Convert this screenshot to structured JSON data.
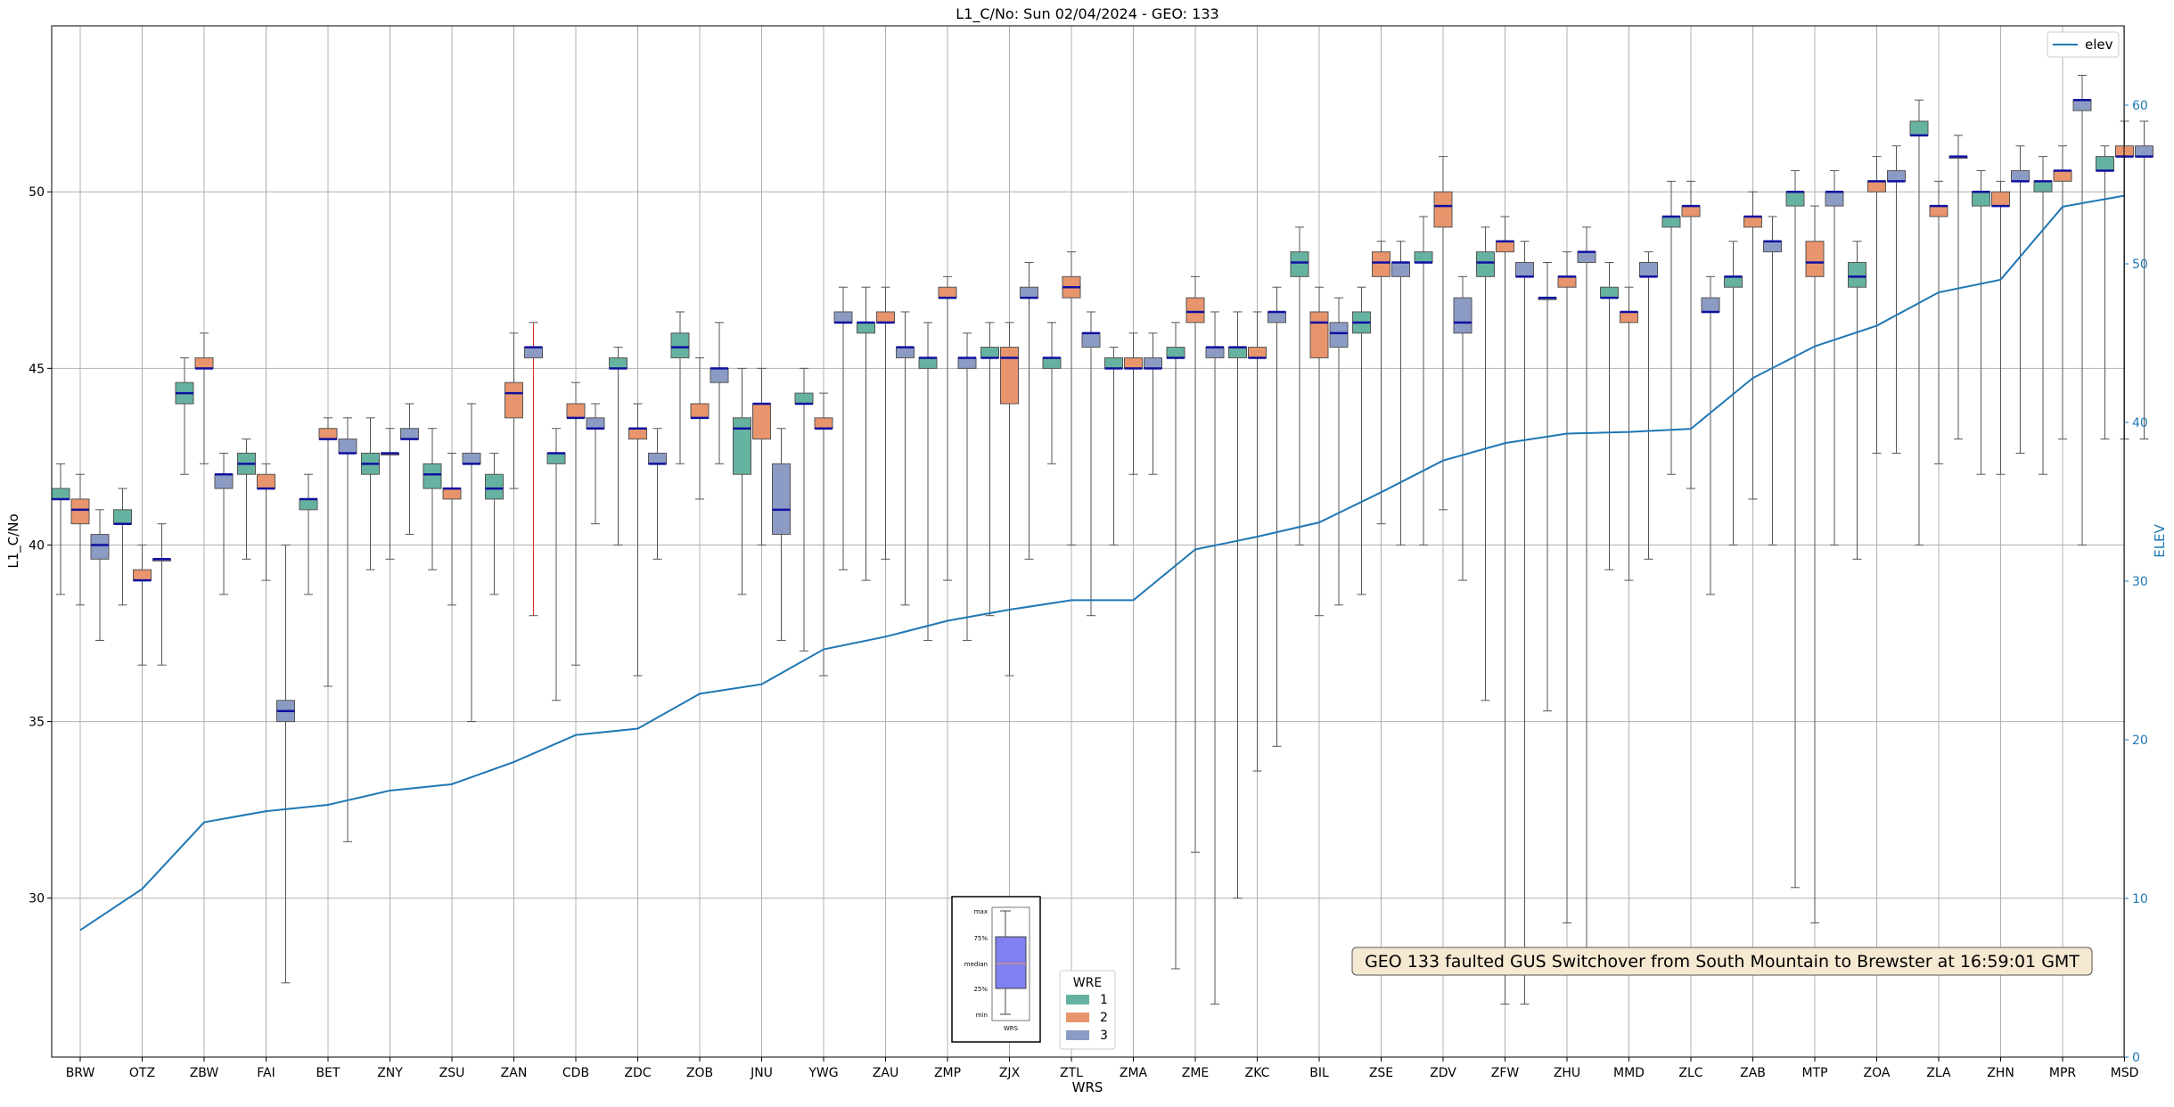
{
  "chart_data": {
    "type": "box",
    "title": "L1_C/No: Sun 02/04/2024 - GEO: 133",
    "xlabel": "WRS",
    "ylabel": "L1_C/No",
    "y2label": "ELEV",
    "ylim": [
      25.5,
      54.7
    ],
    "y2lim": [
      0,
      65
    ],
    "yticks": [
      30,
      35,
      40,
      45,
      50
    ],
    "y2ticks": [
      0,
      10,
      20,
      30,
      40,
      50,
      60
    ],
    "grid": true,
    "categories": [
      "BRW",
      "OTZ",
      "ZBW",
      "FAI",
      "BET",
      "ZNY",
      "ZSU",
      "ZAN",
      "CDB",
      "ZDC",
      "ZOB",
      "JNU",
      "YWG",
      "ZAU",
      "ZMP",
      "ZJX",
      "ZTL",
      "ZMA",
      "ZME",
      "ZKC",
      "BIL",
      "ZSE",
      "ZDV",
      "ZFW",
      "ZHU",
      "MMD",
      "ZLC",
      "ZAB",
      "MTP",
      "ZOA",
      "ZLA",
      "ZHN",
      "MPR",
      "MSD"
    ],
    "wre_colors": {
      "1": "#66b2a0",
      "2": "#e8946c",
      "3": "#8c9bc4"
    },
    "boxes": [
      {
        "wrs": "BRW",
        "wre": 1,
        "min": 38.6,
        "q1": 41.3,
        "median": 41.3,
        "q3": 41.6,
        "max": 42.3
      },
      {
        "wrs": "BRW",
        "wre": 2,
        "min": 38.3,
        "q1": 40.6,
        "median": 41.0,
        "q3": 41.3,
        "max": 42.0
      },
      {
        "wrs": "BRW",
        "wre": 3,
        "min": 37.3,
        "q1": 39.6,
        "median": 40.0,
        "q3": 40.3,
        "max": 41.0
      },
      {
        "wrs": "OTZ",
        "wre": 1,
        "min": 38.3,
        "q1": 40.6,
        "median": 40.6,
        "q3": 41.0,
        "max": 41.6
      },
      {
        "wrs": "OTZ",
        "wre": 2,
        "min": 36.6,
        "q1": 39.0,
        "median": 39.0,
        "q3": 39.3,
        "max": 40.0
      },
      {
        "wrs": "OTZ",
        "wre": 3,
        "min": 36.6,
        "q1": 39.6,
        "median": 39.6,
        "q3": 39.6,
        "max": 40.6
      },
      {
        "wrs": "ZBW",
        "wre": 1,
        "min": 42.0,
        "q1": 44.0,
        "median": 44.3,
        "q3": 44.6,
        "max": 45.3
      },
      {
        "wrs": "ZBW",
        "wre": 2,
        "min": 42.3,
        "q1": 45.0,
        "median": 45.0,
        "q3": 45.3,
        "max": 46.0
      },
      {
        "wrs": "ZBW",
        "wre": 3,
        "min": 38.6,
        "q1": 41.6,
        "median": 42.0,
        "q3": 42.0,
        "max": 42.6
      },
      {
        "wrs": "FAI",
        "wre": 1,
        "min": 39.6,
        "q1": 42.0,
        "median": 42.3,
        "q3": 42.6,
        "max": 43.0
      },
      {
        "wrs": "FAI",
        "wre": 2,
        "min": 39.0,
        "q1": 41.6,
        "median": 41.6,
        "q3": 42.0,
        "max": 42.3
      },
      {
        "wrs": "FAI",
        "wre": 3,
        "min": 27.6,
        "q1": 35.0,
        "median": 35.3,
        "q3": 35.6,
        "max": 40.0
      },
      {
        "wrs": "BET",
        "wre": 1,
        "min": 38.6,
        "q1": 41.0,
        "median": 41.3,
        "q3": 41.3,
        "max": 42.0
      },
      {
        "wrs": "BET",
        "wre": 2,
        "min": 36.0,
        "q1": 43.0,
        "median": 43.0,
        "q3": 43.3,
        "max": 43.6
      },
      {
        "wrs": "BET",
        "wre": 3,
        "min": 31.6,
        "q1": 42.6,
        "median": 42.6,
        "q3": 43.0,
        "max": 43.6
      },
      {
        "wrs": "ZNY",
        "wre": 1,
        "min": 39.3,
        "q1": 42.0,
        "median": 42.3,
        "q3": 42.6,
        "max": 43.6
      },
      {
        "wrs": "ZNY",
        "wre": 2,
        "min": 39.6,
        "q1": 42.6,
        "median": 42.6,
        "q3": 42.6,
        "max": 43.3
      },
      {
        "wrs": "ZNY",
        "wre": 3,
        "min": 40.3,
        "q1": 43.0,
        "median": 43.0,
        "q3": 43.3,
        "max": 44.0
      },
      {
        "wrs": "ZSU",
        "wre": 1,
        "min": 39.3,
        "q1": 41.6,
        "median": 42.0,
        "q3": 42.3,
        "max": 43.3
      },
      {
        "wrs": "ZSU",
        "wre": 2,
        "min": 38.3,
        "q1": 41.3,
        "median": 41.6,
        "q3": 41.6,
        "max": 42.6
      },
      {
        "wrs": "ZSU",
        "wre": 3,
        "min": 35.0,
        "q1": 42.3,
        "median": 42.3,
        "q3": 42.6,
        "max": 44.0
      },
      {
        "wrs": "ZAN",
        "wre": 1,
        "min": 38.6,
        "q1": 41.3,
        "median": 41.6,
        "q3": 42.0,
        "max": 42.6
      },
      {
        "wrs": "ZAN",
        "wre": 2,
        "min": 41.6,
        "q1": 43.6,
        "median": 44.3,
        "q3": 44.6,
        "max": 46.0
      },
      {
        "wrs": "ZAN",
        "wre": 3,
        "min": 38.0,
        "q1": 45.3,
        "median": 45.6,
        "q3": 45.6,
        "max": 46.3,
        "whisker_color": "#e03030"
      },
      {
        "wrs": "CDB",
        "wre": 1,
        "min": 35.6,
        "q1": 42.3,
        "median": 42.6,
        "q3": 42.6,
        "max": 43.3
      },
      {
        "wrs": "CDB",
        "wre": 2,
        "min": 36.6,
        "q1": 43.6,
        "median": 43.6,
        "q3": 44.0,
        "max": 44.6
      },
      {
        "wrs": "CDB",
        "wre": 3,
        "min": 40.6,
        "q1": 43.3,
        "median": 43.3,
        "q3": 43.6,
        "max": 44.0
      },
      {
        "wrs": "ZDC",
        "wre": 1,
        "min": 40.0,
        "q1": 45.0,
        "median": 45.0,
        "q3": 45.3,
        "max": 45.6
      },
      {
        "wrs": "ZDC",
        "wre": 2,
        "min": 36.3,
        "q1": 43.0,
        "median": 43.3,
        "q3": 43.3,
        "max": 44.0
      },
      {
        "wrs": "ZDC",
        "wre": 3,
        "min": 39.6,
        "q1": 42.3,
        "median": 42.3,
        "q3": 42.6,
        "max": 43.3
      },
      {
        "wrs": "ZOB",
        "wre": 1,
        "min": 42.3,
        "q1": 45.3,
        "median": 45.6,
        "q3": 46.0,
        "max": 46.6
      },
      {
        "wrs": "ZOB",
        "wre": 2,
        "min": 41.3,
        "q1": 43.6,
        "median": 43.6,
        "q3": 44.0,
        "max": 45.3
      },
      {
        "wrs": "ZOB",
        "wre": 3,
        "min": 42.3,
        "q1": 44.6,
        "median": 45.0,
        "q3": 45.0,
        "max": 46.3
      },
      {
        "wrs": "JNU",
        "wre": 1,
        "min": 38.6,
        "q1": 42.0,
        "median": 43.3,
        "q3": 43.6,
        "max": 45.0
      },
      {
        "wrs": "JNU",
        "wre": 2,
        "min": 40.0,
        "q1": 43.0,
        "median": 44.0,
        "q3": 44.0,
        "max": 45.0
      },
      {
        "wrs": "JNU",
        "wre": 3,
        "min": 37.3,
        "q1": 40.3,
        "median": 41.0,
        "q3": 42.3,
        "max": 43.3
      },
      {
        "wrs": "YWG",
        "wre": 1,
        "min": 37.0,
        "q1": 44.0,
        "median": 44.0,
        "q3": 44.3,
        "max": 45.0
      },
      {
        "wrs": "YWG",
        "wre": 2,
        "min": 36.3,
        "q1": 43.3,
        "median": 43.3,
        "q3": 43.6,
        "max": 44.3
      },
      {
        "wrs": "YWG",
        "wre": 3,
        "min": 39.3,
        "q1": 46.3,
        "median": 46.3,
        "q3": 46.6,
        "max": 47.3
      },
      {
        "wrs": "ZAU",
        "wre": 1,
        "min": 39.0,
        "q1": 46.0,
        "median": 46.3,
        "q3": 46.3,
        "max": 47.3
      },
      {
        "wrs": "ZAU",
        "wre": 2,
        "min": 39.6,
        "q1": 46.3,
        "median": 46.3,
        "q3": 46.6,
        "max": 47.3
      },
      {
        "wrs": "ZAU",
        "wre": 3,
        "min": 38.3,
        "q1": 45.3,
        "median": 45.6,
        "q3": 45.6,
        "max": 46.6
      },
      {
        "wrs": "ZMP",
        "wre": 1,
        "min": 37.3,
        "q1": 45.0,
        "median": 45.3,
        "q3": 45.3,
        "max": 46.3
      },
      {
        "wrs": "ZMP",
        "wre": 2,
        "min": 39.0,
        "q1": 47.0,
        "median": 47.0,
        "q3": 47.3,
        "max": 47.6
      },
      {
        "wrs": "ZMP",
        "wre": 3,
        "min": 37.3,
        "q1": 45.0,
        "median": 45.3,
        "q3": 45.3,
        "max": 46.0
      },
      {
        "wrs": "ZJX",
        "wre": 1,
        "min": 38.0,
        "q1": 45.3,
        "median": 45.3,
        "q3": 45.6,
        "max": 46.3
      },
      {
        "wrs": "ZJX",
        "wre": 2,
        "min": 36.3,
        "q1": 44.0,
        "median": 45.3,
        "q3": 45.6,
        "max": 46.3
      },
      {
        "wrs": "ZJX",
        "wre": 3,
        "min": 39.6,
        "q1": 47.0,
        "median": 47.0,
        "q3": 47.3,
        "max": 48.0
      },
      {
        "wrs": "ZTL",
        "wre": 1,
        "min": 42.3,
        "q1": 45.0,
        "median": 45.3,
        "q3": 45.3,
        "max": 46.3
      },
      {
        "wrs": "ZTL",
        "wre": 2,
        "min": 40.0,
        "q1": 47.0,
        "median": 47.3,
        "q3": 47.6,
        "max": 48.3
      },
      {
        "wrs": "ZTL",
        "wre": 3,
        "min": 38.0,
        "q1": 45.6,
        "median": 46.0,
        "q3": 46.0,
        "max": 46.6
      },
      {
        "wrs": "ZMA",
        "wre": 1,
        "min": 40.0,
        "q1": 45.0,
        "median": 45.0,
        "q3": 45.3,
        "max": 45.6
      },
      {
        "wrs": "ZMA",
        "wre": 2,
        "min": 42.0,
        "q1": 45.0,
        "median": 45.0,
        "q3": 45.3,
        "max": 46.0
      },
      {
        "wrs": "ZMA",
        "wre": 3,
        "min": 42.0,
        "q1": 45.0,
        "median": 45.0,
        "q3": 45.3,
        "max": 46.0
      },
      {
        "wrs": "ZME",
        "wre": 1,
        "min": 28.0,
        "q1": 45.3,
        "median": 45.3,
        "q3": 45.6,
        "max": 46.3
      },
      {
        "wrs": "ZME",
        "wre": 2,
        "min": 31.3,
        "q1": 46.3,
        "median": 46.6,
        "q3": 47.0,
        "max": 47.6
      },
      {
        "wrs": "ZME",
        "wre": 3,
        "min": 27.0,
        "q1": 45.3,
        "median": 45.6,
        "q3": 45.6,
        "max": 46.6
      },
      {
        "wrs": "ZKC",
        "wre": 1,
        "min": 30.0,
        "q1": 45.3,
        "median": 45.6,
        "q3": 45.6,
        "max": 46.6
      },
      {
        "wrs": "ZKC",
        "wre": 2,
        "min": 33.6,
        "q1": 45.3,
        "median": 45.3,
        "q3": 45.6,
        "max": 46.6
      },
      {
        "wrs": "ZKC",
        "wre": 3,
        "min": 34.3,
        "q1": 46.3,
        "median": 46.6,
        "q3": 46.6,
        "max": 47.3
      },
      {
        "wrs": "BIL",
        "wre": 1,
        "min": 40.0,
        "q1": 47.6,
        "median": 48.0,
        "q3": 48.3,
        "max": 49.0
      },
      {
        "wrs": "BIL",
        "wre": 2,
        "min": 38.0,
        "q1": 45.3,
        "median": 46.3,
        "q3": 46.6,
        "max": 47.3
      },
      {
        "wrs": "BIL",
        "wre": 3,
        "min": 38.3,
        "q1": 45.6,
        "median": 46.0,
        "q3": 46.3,
        "max": 47.0
      },
      {
        "wrs": "ZSE",
        "wre": 1,
        "min": 38.6,
        "q1": 46.0,
        "median": 46.3,
        "q3": 46.6,
        "max": 47.3
      },
      {
        "wrs": "ZSE",
        "wre": 2,
        "min": 40.6,
        "q1": 47.6,
        "median": 48.0,
        "q3": 48.3,
        "max": 48.6
      },
      {
        "wrs": "ZSE",
        "wre": 3,
        "min": 40.0,
        "q1": 47.6,
        "median": 48.0,
        "q3": 48.0,
        "max": 48.6
      },
      {
        "wrs": "ZDV",
        "wre": 1,
        "min": 40.0,
        "q1": 48.0,
        "median": 48.0,
        "q3": 48.3,
        "max": 49.3
      },
      {
        "wrs": "ZDV",
        "wre": 2,
        "min": 41.0,
        "q1": 49.0,
        "median": 49.6,
        "q3": 50.0,
        "max": 51.0
      },
      {
        "wrs": "ZDV",
        "wre": 3,
        "min": 39.0,
        "q1": 46.0,
        "median": 46.3,
        "q3": 47.0,
        "max": 47.6
      },
      {
        "wrs": "ZFW",
        "wre": 1,
        "min": 35.6,
        "q1": 47.6,
        "median": 48.0,
        "q3": 48.3,
        "max": 49.0
      },
      {
        "wrs": "ZFW",
        "wre": 2,
        "min": 27.0,
        "q1": 48.3,
        "median": 48.6,
        "q3": 48.6,
        "max": 49.3
      },
      {
        "wrs": "ZFW",
        "wre": 3,
        "min": 27.0,
        "q1": 47.6,
        "median": 47.6,
        "q3": 48.0,
        "max": 48.6
      },
      {
        "wrs": "ZHU",
        "wre": 1,
        "min": 35.3,
        "q1": 47.0,
        "median": 47.0,
        "q3": 47.0,
        "max": 48.0
      },
      {
        "wrs": "ZHU",
        "wre": 2,
        "min": 29.3,
        "q1": 47.3,
        "median": 47.6,
        "q3": 47.6,
        "max": 48.3
      },
      {
        "wrs": "ZHU",
        "wre": 3,
        "min": 28.6,
        "q1": 48.0,
        "median": 48.3,
        "q3": 48.3,
        "max": 49.0
      },
      {
        "wrs": "MMD",
        "wre": 1,
        "min": 39.3,
        "q1": 47.0,
        "median": 47.0,
        "q3": 47.3,
        "max": 48.0
      },
      {
        "wrs": "MMD",
        "wre": 2,
        "min": 39.0,
        "q1": 46.3,
        "median": 46.6,
        "q3": 46.6,
        "max": 47.3
      },
      {
        "wrs": "MMD",
        "wre": 3,
        "min": 39.6,
        "q1": 47.6,
        "median": 47.6,
        "q3": 48.0,
        "max": 48.3
      },
      {
        "wrs": "ZLC",
        "wre": 1,
        "min": 42.0,
        "q1": 49.0,
        "median": 49.3,
        "q3": 49.3,
        "max": 50.3
      },
      {
        "wrs": "ZLC",
        "wre": 2,
        "min": 41.6,
        "q1": 49.3,
        "median": 49.6,
        "q3": 49.6,
        "max": 50.3
      },
      {
        "wrs": "ZLC",
        "wre": 3,
        "min": 38.6,
        "q1": 46.6,
        "median": 46.6,
        "q3": 47.0,
        "max": 47.6
      },
      {
        "wrs": "ZAB",
        "wre": 1,
        "min": 40.0,
        "q1": 47.3,
        "median": 47.6,
        "q3": 47.6,
        "max": 48.6
      },
      {
        "wrs": "ZAB",
        "wre": 2,
        "min": 41.3,
        "q1": 49.0,
        "median": 49.3,
        "q3": 49.3,
        "max": 50.0
      },
      {
        "wrs": "ZAB",
        "wre": 3,
        "min": 40.0,
        "q1": 48.3,
        "median": 48.6,
        "q3": 48.6,
        "max": 49.3
      },
      {
        "wrs": "MTP",
        "wre": 1,
        "min": 30.3,
        "q1": 49.6,
        "median": 50.0,
        "q3": 50.0,
        "max": 50.6
      },
      {
        "wrs": "MTP",
        "wre": 2,
        "min": 29.3,
        "q1": 47.6,
        "median": 48.0,
        "q3": 48.6,
        "max": 49.6
      },
      {
        "wrs": "MTP",
        "wre": 3,
        "min": 40.0,
        "q1": 49.6,
        "median": 50.0,
        "q3": 50.0,
        "max": 50.6
      },
      {
        "wrs": "ZOA",
        "wre": 1,
        "min": 39.6,
        "q1": 47.3,
        "median": 47.6,
        "q3": 48.0,
        "max": 48.6
      },
      {
        "wrs": "ZOA",
        "wre": 2,
        "min": 42.6,
        "q1": 50.0,
        "median": 50.3,
        "q3": 50.3,
        "max": 51.0
      },
      {
        "wrs": "ZOA",
        "wre": 3,
        "min": 42.6,
        "q1": 50.3,
        "median": 50.3,
        "q3": 50.6,
        "max": 51.3
      },
      {
        "wrs": "ZLA",
        "wre": 1,
        "min": 40.0,
        "q1": 51.6,
        "median": 51.6,
        "q3": 52.0,
        "max": 52.6
      },
      {
        "wrs": "ZLA",
        "wre": 2,
        "min": 42.3,
        "q1": 49.3,
        "median": 49.6,
        "q3": 49.6,
        "max": 50.3
      },
      {
        "wrs": "ZLA",
        "wre": 3,
        "min": 43.0,
        "q1": 51.0,
        "median": 51.0,
        "q3": 51.0,
        "max": 51.6
      },
      {
        "wrs": "ZHN",
        "wre": 1,
        "min": 42.0,
        "q1": 49.6,
        "median": 50.0,
        "q3": 50.0,
        "max": 50.6
      },
      {
        "wrs": "ZHN",
        "wre": 2,
        "min": 42.0,
        "q1": 49.6,
        "median": 49.6,
        "q3": 50.0,
        "max": 50.3
      },
      {
        "wrs": "ZHN",
        "wre": 3,
        "min": 42.6,
        "q1": 50.3,
        "median": 50.3,
        "q3": 50.6,
        "max": 51.3
      },
      {
        "wrs": "MPR",
        "wre": 1,
        "min": 42.0,
        "q1": 50.0,
        "median": 50.3,
        "q3": 50.3,
        "max": 51.0
      },
      {
        "wrs": "MPR",
        "wre": 2,
        "min": 43.0,
        "q1": 50.3,
        "median": 50.6,
        "q3": 50.6,
        "max": 51.3
      },
      {
        "wrs": "MPR",
        "wre": 3,
        "min": 40.0,
        "q1": 52.3,
        "median": 52.6,
        "q3": 52.6,
        "max": 53.3
      },
      {
        "wrs": "MSD",
        "wre": 1,
        "min": 43.0,
        "q1": 50.6,
        "median": 50.6,
        "q3": 51.0,
        "max": 51.3
      },
      {
        "wrs": "MSD",
        "wre": 2,
        "min": 43.0,
        "q1": 51.0,
        "median": 51.0,
        "q3": 51.3,
        "max": 52.0
      },
      {
        "wrs": "MSD",
        "wre": 3,
        "min": 43.0,
        "q1": 51.0,
        "median": 51.0,
        "q3": 51.3,
        "max": 52.0
      }
    ],
    "elev": {
      "name": "elev",
      "color": "#1f77b4",
      "values": [
        8.0,
        10.6,
        14.8,
        15.5,
        15.9,
        16.8,
        17.2,
        18.6,
        20.3,
        20.7,
        22.9,
        23.5,
        25.7,
        26.5,
        27.5,
        28.2,
        28.8,
        28.8,
        32.0,
        32.8,
        33.7,
        35.6,
        37.6,
        38.7,
        39.3,
        39.4,
        39.6,
        42.8,
        44.8,
        46.1,
        48.2,
        49.0,
        53.6,
        54.3
      ]
    },
    "legend_elev": {
      "label": "elev",
      "placement": "top-right"
    },
    "legend_wre": {
      "title": "WRE",
      "entries": [
        "1",
        "2",
        "3"
      ],
      "placement": "bottom-center"
    },
    "inset_key": {
      "labels": [
        "max",
        "75%",
        "median",
        "25%",
        "min"
      ],
      "xlabel": "WRS",
      "fill": "#8080f0",
      "median_color": "#e8946c"
    },
    "annotation": {
      "text": "GEO 133 faulted GUS Switchover from South Mountain to Brewster at 16:59:01 GMT",
      "placement": "bottom-right"
    }
  }
}
